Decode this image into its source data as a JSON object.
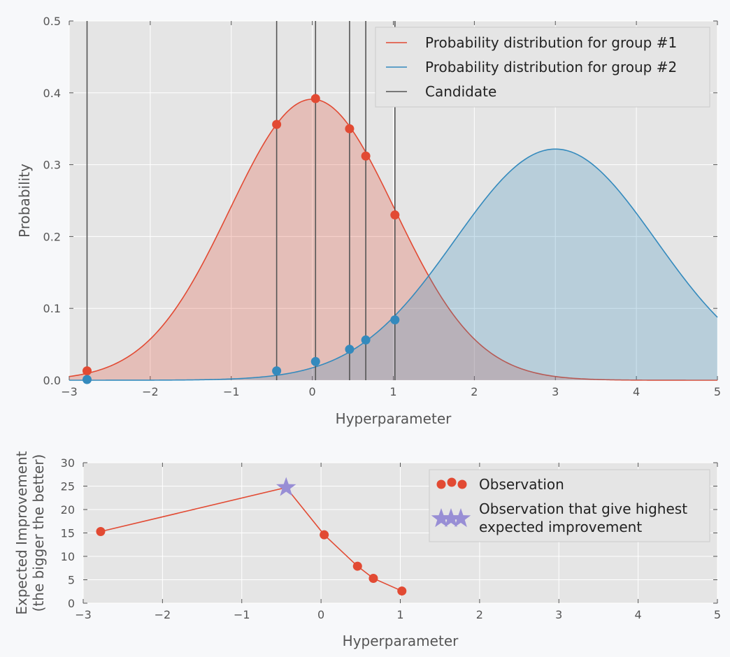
{
  "chart_data": [
    {
      "type": "line",
      "title": "",
      "xlabel": "Hyperparameter",
      "ylabel": "Probability",
      "xlim": [
        -3,
        5
      ],
      "ylim": [
        0,
        0.5
      ],
      "xticks": [
        -3,
        -2,
        -1,
        0,
        1,
        2,
        3,
        4,
        5
      ],
      "xtick_labels": [
        "−3",
        "−2",
        "−1",
        "0",
        "1",
        "2",
        "3",
        "4",
        "5"
      ],
      "yticks": [
        0,
        0.1,
        0.2,
        0.3,
        0.4,
        0.5
      ],
      "ytick_labels": [
        "0.0",
        "0.1",
        "0.2",
        "0.3",
        "0.4",
        "0.5"
      ],
      "grid": true,
      "legend_position": "top-right",
      "series": [
        {
          "name": "Probability distribution for group #1",
          "kind": "normal-pdf",
          "mean": 0,
          "std": 1.02,
          "color": "#E24A33",
          "filled": true,
          "points_at_candidates": [
            0.013,
            0.356,
            0.392,
            0.35,
            0.312,
            0.23
          ]
        },
        {
          "name": "Probability distribution for group #2",
          "kind": "normal-pdf",
          "mean": 3,
          "std": 1.24,
          "color": "#348ABD",
          "filled": true,
          "points_at_candidates": [
            0.001,
            0.013,
            0.026,
            0.043,
            0.056,
            0.084
          ]
        },
        {
          "name": "Candidate",
          "kind": "vertical-lines",
          "x": [
            -2.78,
            -0.44,
            0.04,
            0.46,
            0.66,
            1.02
          ],
          "color": "#555555"
        }
      ]
    },
    {
      "type": "line",
      "title": "",
      "xlabel": "Hyperparameter",
      "ylabel": [
        "Expected Improvement",
        "(the bigger the better)"
      ],
      "xlim": [
        -3,
        5
      ],
      "ylim": [
        0,
        30
      ],
      "xticks": [
        -3,
        -2,
        -1,
        0,
        1,
        2,
        3,
        4,
        5
      ],
      "xtick_labels": [
        "−3",
        "−2",
        "−1",
        "0",
        "1",
        "2",
        "3",
        "4",
        "5"
      ],
      "yticks": [
        0,
        5,
        10,
        15,
        20,
        25,
        30
      ],
      "ytick_labels": [
        "0",
        "5",
        "10",
        "15",
        "20",
        "25",
        "30"
      ],
      "grid": true,
      "legend_position": "top-right",
      "series": [
        {
          "name": "Observation",
          "x": [
            -2.78,
            -0.44,
            0.04,
            0.46,
            0.66,
            1.02
          ],
          "y": [
            15.3,
            24.7,
            14.6,
            7.9,
            5.3,
            2.6
          ],
          "color": "#E24A33"
        },
        {
          "name": "Observation that give highest expected improvement",
          "legend_lines": [
            "Observation that give highest",
            "expected improvement"
          ],
          "x": [
            -0.44
          ],
          "y": [
            24.7
          ],
          "color": "#988ED5",
          "marker": "star"
        }
      ]
    }
  ]
}
